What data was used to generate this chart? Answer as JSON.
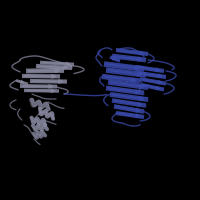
{
  "background_color": "#000000",
  "figsize": [
    2.0,
    2.0
  ],
  "dpi": 100,
  "gray_color": "#8888a0",
  "blue_color": "#3a4aaa",
  "gray_dark": "#606070",
  "blue_dark": "#2a3480"
}
